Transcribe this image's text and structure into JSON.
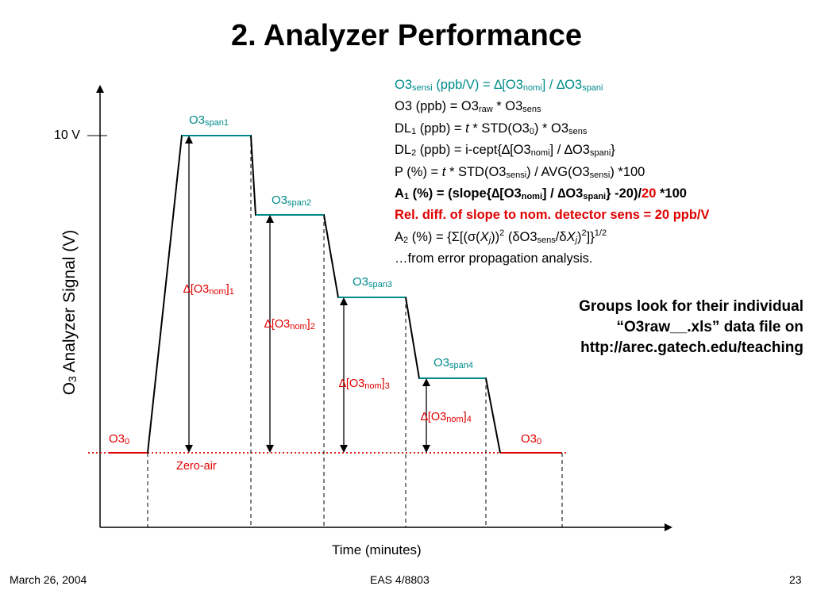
{
  "title": "2. Analyzer Performance",
  "formulas": {
    "sensi_line": {
      "t1": "O3",
      "s1": "sensi",
      "t2": " (ppb/V) = ∆[O3",
      "s2": "nomi",
      "t3": "] / ∆O3",
      "s3": "spani"
    },
    "o3_line": {
      "t1": "O3 (ppb) = O3",
      "s1": "raw",
      "t2": " * O3",
      "s2": "sens"
    },
    "dl1_line": {
      "t1": "DL",
      "s1": "1",
      "t2": " (ppb) = ",
      "t2i": "t",
      "t3": " * STD(O3",
      "s3": "0",
      "t4": ") * O3",
      "s4": "sens"
    },
    "dl2_line": {
      "t1": "DL",
      "s1": "2",
      "t2": " (ppb) = i-cept{∆[O3",
      "s2": "nomi",
      "t3": "] / ∆O3",
      "s3": "spani",
      "t4": "}"
    },
    "p_line": {
      "t1": "P (%) = ",
      "t1i": "t",
      "t2": " * STD(O3",
      "s2": "sensi",
      "t3": ") / AVG(O3",
      "s3": "sensi",
      "t4": ") *100"
    },
    "a1_line": {
      "t1": "A",
      "s1": "1",
      "t2": " (%) = (slope{∆[O3",
      "s2": "nomi",
      "t3": "] / ∆O3",
      "s3": "spani",
      "t4": "} -20)/",
      "red": "20",
      "t5": " *100"
    },
    "rel_line": "Rel. diff. of slope to nom. detector sens = 20 ppb/V",
    "a2_line": {
      "t1": "A",
      "s1": "2",
      "t2": " (%) = {Σ[(σ(",
      "x1": "X",
      "sj1": "j",
      "t3": "))",
      "p1": "2",
      "t4": " (δO3",
      "s4": "sens",
      "t5": "/δ",
      "x2": "X",
      "sj2": "j",
      "t6": ")",
      "p2": "2",
      "t7": "]}",
      "p3": "1/2"
    },
    "footnote": "…from error propagation analysis."
  },
  "note": [
    "Groups look for their individual",
    "“O3raw__.xls” data file on",
    "http://arec.gatech.edu/teaching"
  ],
  "diagram": {
    "y_axis_label_main": "O",
    "y_axis_label_sub": "3",
    "y_axis_label_rest": " Analyzer Signal   (V)",
    "x_axis_label": "Time   (minutes)",
    "tick_10v": "10 V",
    "zero_air": "Zero-air",
    "o3_zero": {
      "base": "O3",
      "sub": "0"
    },
    "spans": [
      {
        "base": "O3",
        "sub": "span1"
      },
      {
        "base": "O3",
        "sub": "span2"
      },
      {
        "base": "O3",
        "sub": "span3"
      },
      {
        "base": "O3",
        "sub": "span4"
      }
    ],
    "deltas": [
      {
        "pre": "∆[O3",
        "sub": "nom",
        "post": "]",
        "idx": "1"
      },
      {
        "pre": "∆[O3",
        "sub": "nom",
        "post": "]",
        "idx": "2"
      },
      {
        "pre": "∆[O3",
        "sub": "nom",
        "post": "]",
        "idx": "3"
      },
      {
        "pre": "∆[O3",
        "sub": "nom",
        "post": "]",
        "idx": "4"
      }
    ],
    "colors": {
      "span": "#008b8b",
      "zero": "#e00000",
      "line": "#000000"
    }
  },
  "footer": {
    "date": "March 26, 2004",
    "course": "EAS 4/8803",
    "page": "23"
  }
}
